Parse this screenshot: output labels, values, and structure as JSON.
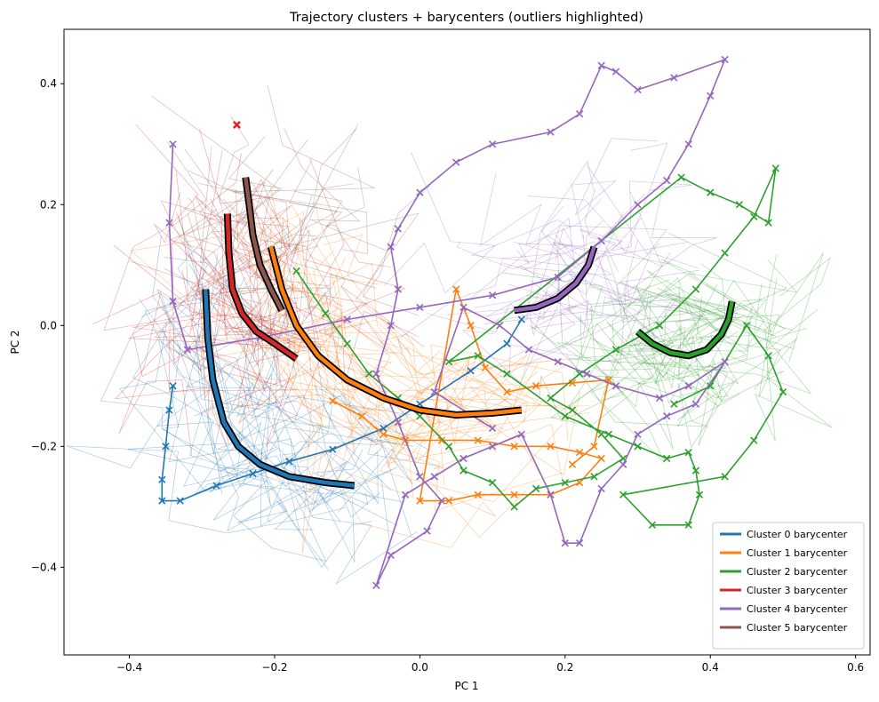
{
  "chart_data": {
    "type": "line",
    "title": "Trajectory clusters + barycenters (outliers highlighted)",
    "xlabel": "PC 1",
    "ylabel": "PC 2",
    "xlim": [
      -0.49,
      0.62
    ],
    "ylim": [
      -0.545,
      0.49
    ],
    "xticks": [
      -0.4,
      -0.2,
      0.0,
      0.2,
      0.4,
      0.6
    ],
    "xtick_labels": [
      "−0.4",
      "−0.2",
      "0.0",
      "0.2",
      "0.4",
      "0.6"
    ],
    "yticks": [
      -0.4,
      -0.2,
      0.0,
      0.2,
      0.4
    ],
    "ytick_labels": [
      "−0.4",
      "−0.2",
      "0.0",
      "0.2",
      "0.4"
    ],
    "grid": false,
    "legend_position": "lower-right",
    "series": [
      {
        "name": "Cluster 0 barycenter",
        "color": "#1f77b4",
        "barycenter": [
          [
            -0.295,
            0.06
          ],
          [
            -0.292,
            -0.02
          ],
          [
            -0.285,
            -0.09
          ],
          [
            -0.27,
            -0.16
          ],
          [
            -0.25,
            -0.2
          ],
          [
            -0.22,
            -0.23
          ],
          [
            -0.18,
            -0.25
          ],
          [
            -0.13,
            -0.26
          ],
          [
            -0.09,
            -0.265
          ]
        ],
        "outliers": [
          [
            -0.34,
            -0.1
          ],
          [
            -0.345,
            -0.14
          ],
          [
            -0.35,
            -0.2
          ],
          [
            -0.355,
            -0.255
          ],
          [
            -0.355,
            -0.29
          ],
          [
            -0.33,
            -0.29
          ],
          [
            -0.28,
            -0.265
          ],
          [
            -0.23,
            -0.245
          ],
          [
            -0.18,
            -0.225
          ],
          [
            -0.12,
            -0.205
          ],
          [
            -0.05,
            -0.17
          ],
          [
            0.0,
            -0.13
          ],
          [
            0.07,
            -0.075
          ],
          [
            0.12,
            -0.03
          ],
          [
            0.14,
            0.01
          ]
        ]
      },
      {
        "name": "Cluster 1 barycenter",
        "color": "#ff7f0e",
        "barycenter": [
          [
            -0.205,
            0.13
          ],
          [
            -0.19,
            0.06
          ],
          [
            -0.17,
            0.0
          ],
          [
            -0.14,
            -0.05
          ],
          [
            -0.1,
            -0.09
          ],
          [
            -0.05,
            -0.12
          ],
          [
            0.0,
            -0.14
          ],
          [
            0.05,
            -0.148
          ],
          [
            0.1,
            -0.145
          ],
          [
            0.14,
            -0.14
          ]
        ],
        "outliers": [
          [
            -0.12,
            -0.125
          ],
          [
            -0.08,
            -0.15
          ],
          [
            -0.05,
            -0.18
          ],
          [
            -0.02,
            -0.19
          ],
          [
            0.03,
            -0.19
          ],
          [
            0.08,
            -0.19
          ],
          [
            0.13,
            -0.2
          ],
          [
            0.18,
            -0.2
          ],
          [
            0.22,
            -0.21
          ],
          [
            0.25,
            -0.22
          ],
          [
            0.22,
            -0.26
          ],
          [
            0.18,
            -0.28
          ],
          [
            0.13,
            -0.28
          ],
          [
            0.08,
            -0.28
          ],
          [
            0.04,
            -0.29
          ],
          [
            0.0,
            -0.29
          ],
          [
            0.05,
            0.06
          ],
          [
            0.07,
            0.0
          ],
          [
            0.09,
            -0.07
          ],
          [
            0.12,
            -0.11
          ],
          [
            0.16,
            -0.1
          ],
          [
            0.21,
            -0.095
          ],
          [
            0.26,
            -0.09
          ],
          [
            0.24,
            -0.2
          ],
          [
            0.21,
            -0.23
          ]
        ]
      },
      {
        "name": "Cluster 2 barycenter",
        "color": "#2ca02c",
        "barycenter": [
          [
            0.3,
            -0.01
          ],
          [
            0.32,
            -0.03
          ],
          [
            0.345,
            -0.045
          ],
          [
            0.37,
            -0.05
          ],
          [
            0.395,
            -0.04
          ],
          [
            0.415,
            -0.015
          ],
          [
            0.425,
            0.01
          ],
          [
            0.43,
            0.04
          ]
        ],
        "outliers": [
          [
            -0.17,
            0.09
          ],
          [
            -0.13,
            0.02
          ],
          [
            -0.1,
            -0.03
          ],
          [
            -0.07,
            -0.08
          ],
          [
            -0.03,
            -0.12
          ],
          [
            0.0,
            -0.15
          ],
          [
            0.04,
            -0.2
          ],
          [
            0.06,
            -0.24
          ],
          [
            0.1,
            -0.26
          ],
          [
            0.13,
            -0.3
          ],
          [
            0.16,
            -0.27
          ],
          [
            0.2,
            -0.26
          ],
          [
            0.24,
            -0.25
          ],
          [
            0.28,
            -0.22
          ],
          [
            0.25,
            -0.18
          ],
          [
            0.21,
            -0.14
          ],
          [
            0.18,
            -0.12
          ],
          [
            0.22,
            -0.08
          ],
          [
            0.27,
            -0.04
          ],
          [
            0.33,
            0.0
          ],
          [
            0.38,
            0.06
          ],
          [
            0.42,
            0.12
          ],
          [
            0.46,
            0.18
          ],
          [
            0.49,
            0.26
          ],
          [
            0.48,
            0.17
          ],
          [
            0.44,
            0.2
          ],
          [
            0.4,
            0.22
          ],
          [
            0.36,
            0.245
          ],
          [
            0.04,
            -0.06
          ],
          [
            0.08,
            -0.05
          ],
          [
            0.12,
            -0.08
          ],
          [
            0.2,
            -0.15
          ],
          [
            0.26,
            -0.18
          ],
          [
            0.3,
            -0.2
          ],
          [
            0.34,
            -0.22
          ],
          [
            0.37,
            -0.21
          ],
          [
            0.38,
            -0.24
          ],
          [
            0.385,
            -0.28
          ],
          [
            0.37,
            -0.33
          ],
          [
            0.32,
            -0.33
          ],
          [
            0.28,
            -0.28
          ],
          [
            0.42,
            -0.25
          ],
          [
            0.46,
            -0.19
          ],
          [
            0.5,
            -0.11
          ],
          [
            0.48,
            -0.05
          ],
          [
            0.45,
            0.0
          ],
          [
            0.4,
            -0.1
          ],
          [
            0.35,
            -0.13
          ]
        ]
      },
      {
        "name": "Cluster 3 barycenter",
        "color": "#d62728",
        "barycenter": [
          [
            -0.265,
            0.185
          ],
          [
            -0.263,
            0.12
          ],
          [
            -0.258,
            0.06
          ],
          [
            -0.245,
            0.02
          ],
          [
            -0.225,
            -0.01
          ],
          [
            -0.2,
            -0.03
          ],
          [
            -0.17,
            -0.055
          ]
        ],
        "outliers": [
          [
            -0.252,
            0.332
          ]
        ]
      },
      {
        "name": "Cluster 4 barycenter",
        "color": "#9467bd",
        "barycenter": [
          [
            0.13,
            0.025
          ],
          [
            0.16,
            0.03
          ],
          [
            0.19,
            0.045
          ],
          [
            0.215,
            0.07
          ],
          [
            0.232,
            0.1
          ],
          [
            0.24,
            0.13
          ]
        ],
        "outliers": [
          [
            -0.34,
            0.3
          ],
          [
            -0.345,
            0.17
          ],
          [
            -0.34,
            0.04
          ],
          [
            -0.32,
            -0.04
          ],
          [
            -0.22,
            -0.02
          ],
          [
            -0.1,
            0.01
          ],
          [
            0.0,
            0.03
          ],
          [
            0.1,
            0.05
          ],
          [
            0.19,
            0.08
          ],
          [
            0.25,
            0.14
          ],
          [
            0.3,
            0.2
          ],
          [
            0.34,
            0.24
          ],
          [
            0.37,
            0.3
          ],
          [
            0.4,
            0.38
          ],
          [
            0.42,
            0.44
          ],
          [
            0.35,
            0.41
          ],
          [
            0.3,
            0.39
          ],
          [
            0.27,
            0.42
          ],
          [
            0.25,
            0.43
          ],
          [
            0.22,
            0.35
          ],
          [
            0.18,
            0.32
          ],
          [
            0.1,
            0.3
          ],
          [
            0.05,
            0.27
          ],
          [
            0.0,
            0.22
          ],
          [
            -0.03,
            0.16
          ],
          [
            -0.04,
            0.13
          ],
          [
            -0.03,
            0.06
          ],
          [
            -0.04,
            0.0
          ],
          [
            -0.06,
            -0.08
          ],
          [
            -0.03,
            -0.16
          ],
          [
            0.0,
            -0.25
          ],
          [
            0.03,
            -0.29
          ],
          [
            0.01,
            -0.34
          ],
          [
            -0.04,
            -0.38
          ],
          [
            -0.06,
            -0.43
          ],
          [
            -0.02,
            -0.28
          ],
          [
            0.02,
            -0.25
          ],
          [
            0.06,
            -0.22
          ],
          [
            0.1,
            -0.2
          ],
          [
            0.14,
            -0.18
          ],
          [
            0.18,
            -0.28
          ],
          [
            0.2,
            -0.36
          ],
          [
            0.22,
            -0.36
          ],
          [
            0.25,
            -0.27
          ],
          [
            0.28,
            -0.23
          ],
          [
            0.3,
            -0.18
          ],
          [
            0.34,
            -0.15
          ],
          [
            0.38,
            -0.13
          ],
          [
            0.42,
            -0.06
          ],
          [
            0.37,
            -0.1
          ],
          [
            0.33,
            -0.12
          ],
          [
            0.27,
            -0.1
          ],
          [
            0.23,
            -0.08
          ],
          [
            0.19,
            -0.06
          ],
          [
            0.15,
            -0.04
          ],
          [
            0.11,
            0.0
          ],
          [
            0.06,
            0.03
          ],
          [
            0.02,
            -0.11
          ],
          [
            0.1,
            -0.17
          ]
        ]
      },
      {
        "name": "Cluster 5 barycenter",
        "color": "#8c564b",
        "barycenter": [
          [
            -0.24,
            0.245
          ],
          [
            -0.235,
            0.2
          ],
          [
            -0.23,
            0.15
          ],
          [
            -0.22,
            0.1
          ],
          [
            -0.205,
            0.06
          ],
          [
            -0.19,
            0.025
          ]
        ],
        "outliers": []
      }
    ]
  }
}
